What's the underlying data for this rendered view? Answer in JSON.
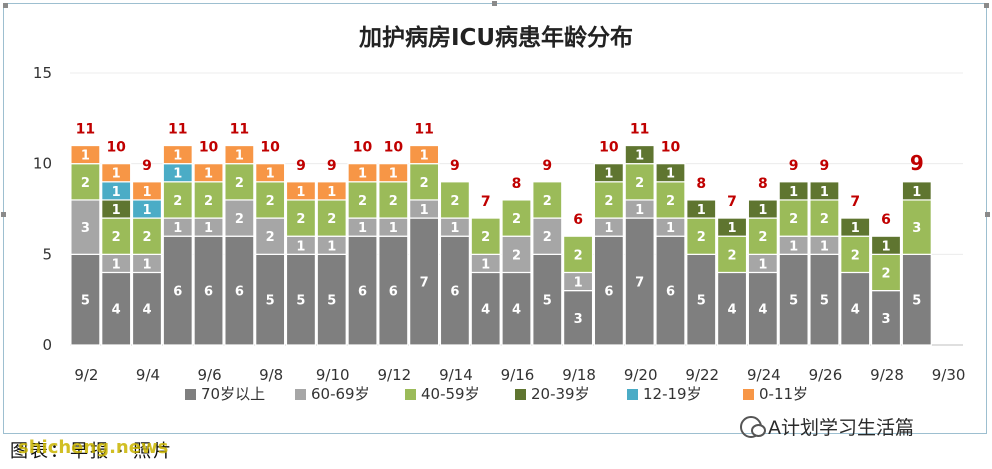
{
  "chart_data": {
    "type": "bar",
    "stacked": true,
    "title": "加护病房ICU病患年龄分布",
    "xlabel": "",
    "ylabel": "",
    "ylim": [
      0,
      15
    ],
    "yticks": [
      "0",
      "5",
      "10",
      "15"
    ],
    "grid": true,
    "legend_position": "bottom",
    "categories": [
      "9/2",
      "9/3",
      "9/4",
      "9/5",
      "9/6",
      "9/7",
      "9/8",
      "9/9",
      "9/10",
      "9/11",
      "9/12",
      "9/13",
      "9/14",
      "9/15",
      "9/16",
      "9/17",
      "9/18",
      "9/19",
      "9/20",
      "9/21",
      "9/22",
      "9/23",
      "9/24",
      "9/25",
      "9/26",
      "9/27",
      "9/28",
      "9/29",
      "9/30"
    ],
    "x_tick_labels": [
      "9/2",
      "",
      "9/4",
      "",
      "9/6",
      "",
      "9/8",
      "",
      "9/10",
      "",
      "9/12",
      "",
      "9/14",
      "",
      "9/16",
      "",
      "9/18",
      "",
      "9/20",
      "",
      "9/22",
      "",
      "9/24",
      "",
      "9/26",
      "",
      "9/28",
      "",
      "9/30"
    ],
    "series": [
      {
        "name": "70岁以上",
        "color": "#7f7f7f",
        "values": [
          5,
          4,
          4,
          6,
          6,
          6,
          5,
          5,
          5,
          6,
          6,
          7,
          6,
          4,
          4,
          5,
          3,
          6,
          7,
          6,
          5,
          4,
          4,
          5,
          5,
          4,
          3,
          5,
          null
        ]
      },
      {
        "name": "60-69岁",
        "color": "#a6a6a6",
        "values": [
          3,
          1,
          1,
          1,
          1,
          2,
          2,
          1,
          1,
          1,
          1,
          1,
          1,
          1,
          2,
          2,
          1,
          1,
          1,
          1,
          null,
          null,
          1,
          1,
          1,
          null,
          null,
          null,
          null
        ]
      },
      {
        "name": "40-59岁",
        "color": "#9bbb59",
        "values": [
          2,
          2,
          2,
          2,
          2,
          2,
          2,
          2,
          2,
          2,
          2,
          2,
          2,
          2,
          2,
          2,
          2,
          2,
          2,
          2,
          2,
          2,
          2,
          2,
          2,
          2,
          2,
          3,
          null
        ]
      },
      {
        "name": "20-39岁",
        "color": "#5f7530",
        "values": [
          null,
          1,
          null,
          null,
          null,
          null,
          null,
          null,
          null,
          null,
          null,
          null,
          null,
          null,
          null,
          null,
          null,
          1,
          1,
          1,
          1,
          1,
          1,
          1,
          1,
          1,
          1,
          1,
          null
        ]
      },
      {
        "name": "12-19岁",
        "color": "#4bacc6",
        "values": [
          null,
          1,
          1,
          1,
          null,
          null,
          null,
          null,
          null,
          null,
          null,
          null,
          null,
          null,
          null,
          null,
          null,
          null,
          null,
          null,
          null,
          null,
          null,
          null,
          null,
          null,
          null,
          null,
          null
        ]
      },
      {
        "name": "0-11岁",
        "color": "#f79646",
        "values": [
          1,
          1,
          1,
          1,
          1,
          1,
          1,
          1,
          1,
          1,
          1,
          1,
          null,
          null,
          null,
          null,
          null,
          null,
          null,
          null,
          null,
          null,
          null,
          null,
          null,
          null,
          null,
          null,
          null
        ]
      }
    ],
    "totals": [
      "11",
      "10",
      "9",
      "11",
      "10",
      "11",
      "10",
      "9",
      "9",
      "10",
      "10",
      "11",
      "9",
      "7",
      "8",
      "9",
      "6",
      "10",
      "11",
      "10",
      "8",
      "7",
      "8",
      "9",
      "9",
      "7",
      "6",
      "9",
      ""
    ],
    "total_label_color": "#c00000"
  },
  "footer": {
    "left_text": "图表：早报 · 照片",
    "overlay_text": "shicheng.news",
    "watermark": "A计划学习生活篇"
  }
}
